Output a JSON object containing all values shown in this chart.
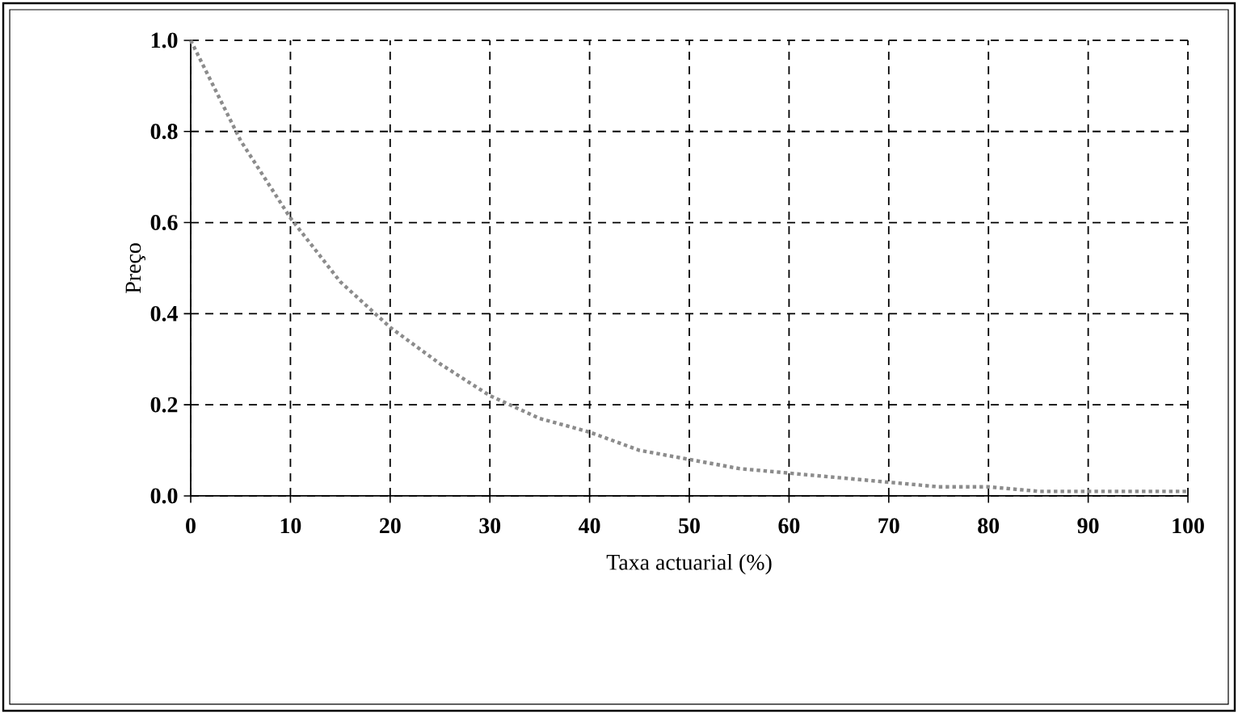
{
  "chart_data": {
    "type": "line",
    "xlabel": "Taxa actuarial (%)",
    "ylabel": "Preço",
    "x": [
      0,
      5,
      10,
      15,
      20,
      25,
      30,
      35,
      40,
      45,
      50,
      55,
      60,
      65,
      70,
      75,
      80,
      85,
      90,
      95,
      100
    ],
    "series": [
      {
        "color": "#8c8c8c",
        "values": [
          1.0,
          0.78,
          0.61,
          0.47,
          0.37,
          0.29,
          0.22,
          0.17,
          0.14,
          0.1,
          0.08,
          0.06,
          0.05,
          0.04,
          0.03,
          0.02,
          0.02,
          0.01,
          0.01,
          0.01,
          0.01
        ]
      }
    ],
    "xlim": [
      0,
      100
    ],
    "xticks": [
      0,
      10,
      20,
      30,
      40,
      50,
      60,
      70,
      80,
      90,
      100
    ],
    "ylim": [
      0,
      1
    ],
    "yticks": [
      {
        "value": 0,
        "label": "0.0"
      },
      {
        "value": 0.2,
        "label": "0.2"
      },
      {
        "value": 0.4,
        "label": "0.4"
      },
      {
        "value": 0.6,
        "label": "0.6"
      },
      {
        "value": 0.8,
        "label": "0.8"
      },
      {
        "value": 1,
        "label": "1.0"
      }
    ],
    "grid": true,
    "marker": "none",
    "line_style": "dotted"
  }
}
